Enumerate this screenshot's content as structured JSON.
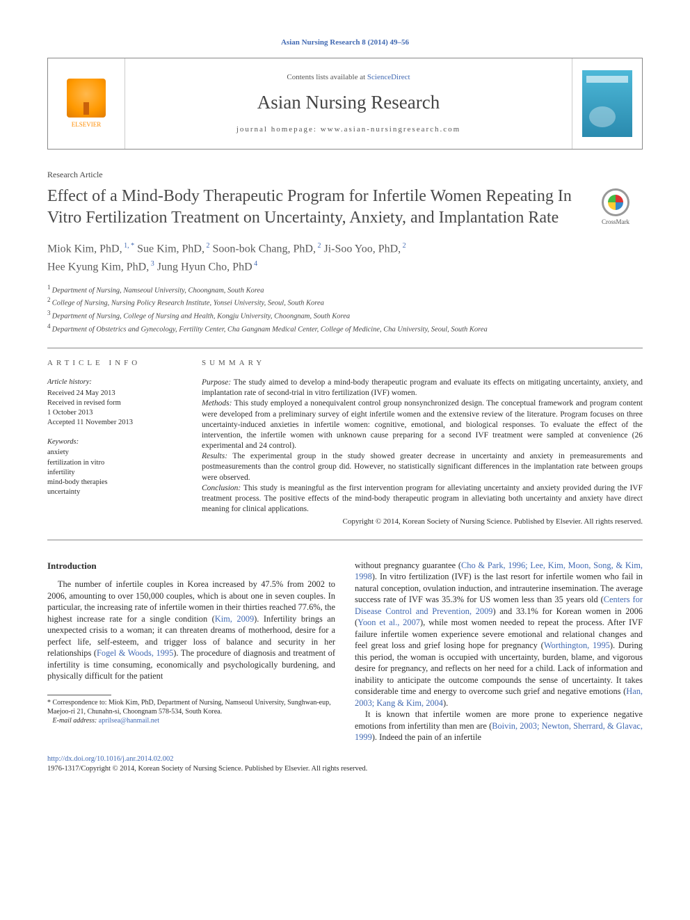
{
  "citation_line": "Asian Nursing Research 8 (2014) 49–56",
  "masthead": {
    "publisher": "ELSEVIER",
    "contents_line_pre": "Contents lists available at ",
    "contents_link": "ScienceDirect",
    "journal_name": "Asian Nursing Research",
    "homepage_label": "journal homepage: www.asian-nursingresearch.com"
  },
  "article_type": "Research Article",
  "title": "Effect of a Mind-Body Therapeutic Program for Infertile Women Repeating In Vitro Fertilization Treatment on Uncertainty, Anxiety, and Implantation Rate",
  "crossmark_label": "CrossMark",
  "authors_html_parts": [
    {
      "name": "Miok Kim, PhD,",
      "sup": "1,",
      "ast": "*"
    },
    {
      "name": " Sue Kim, PhD,",
      "sup": "2"
    },
    {
      "name": " Soon-bok Chang, PhD,",
      "sup": "2"
    },
    {
      "name": " Ji-Soo Yoo, PhD,",
      "sup": "2"
    },
    {
      "name": " Hee Kyung Kim, PhD,",
      "sup": "3"
    },
    {
      "name": " Jung Hyun Cho, PhD",
      "sup": "4"
    }
  ],
  "affiliations": [
    {
      "n": "1",
      "text": "Department of Nursing, Namseoul University, Choongnam, South Korea"
    },
    {
      "n": "2",
      "text": "College of Nursing, Nursing Policy Research Institute, Yonsei University, Seoul, South Korea"
    },
    {
      "n": "3",
      "text": "Department of Nursing, College of Nursing and Health, Kongju University, Choongnam, South Korea"
    },
    {
      "n": "4",
      "text": "Department of Obstetrics and Gynecology, Fertility Center, Cha Gangnam Medical Center, College of Medicine, Cha University, Seoul, South Korea"
    }
  ],
  "info": {
    "heading": "article info",
    "history_label": "Article history:",
    "history": [
      "Received 24 May 2013",
      "Received in revised form",
      "1 October 2013",
      "Accepted 11 November 2013"
    ],
    "keywords_label": "Keywords:",
    "keywords": [
      "anxiety",
      "fertilization in vitro",
      "infertility",
      "mind-body therapies",
      "uncertainty"
    ]
  },
  "summary": {
    "heading": "summary",
    "purpose_label": "Purpose:",
    "purpose": "The study aimed to develop a mind-body therapeutic program and evaluate its effects on mitigating uncertainty, anxiety, and implantation rate of second-trial in vitro fertilization (IVF) women.",
    "methods_label": "Methods:",
    "methods": "This study employed a nonequivalent control group nonsynchronized design. The conceptual framework and program content were developed from a preliminary survey of eight infertile women and the extensive review of the literature. Program focuses on three uncertainty-induced anxieties in infertile women: cognitive, emotional, and biological responses. To evaluate the effect of the intervention, the infertile women with unknown cause preparing for a second IVF treatment were sampled at convenience (26 experimental and 24 control).",
    "results_label": "Results:",
    "results": "The experimental group in the study showed greater decrease in uncertainty and anxiety in premeasurements and postmeasurements than the control group did. However, no statistically significant differences in the implantation rate between groups were observed.",
    "conclusion_label": "Conclusion:",
    "conclusion": "This study is meaningful as the first intervention program for alleviating uncertainty and anxiety provided during the IVF treatment process. The positive effects of the mind-body therapeutic program in alleviating both uncertainty and anxiety have direct meaning for clinical applications.",
    "copyright": "Copyright © 2014, Korean Society of Nursing Science. Published by Elsevier. All rights reserved."
  },
  "intro": {
    "heading": "Introduction",
    "col1_p1_a": "The number of infertile couples in Korea increased by 47.5% from 2002 to 2006, amounting to over 150,000 couples, which is about one in seven couples. In particular, the increasing rate of infertile women in their thirties reached 77.6%, the highest increase rate for a single condition (",
    "col1_cite1": "Kim, 2009",
    "col1_p1_b": "). Infertility brings an unexpected crisis to a woman; it can threaten dreams of motherhood, desire for a perfect life, self-esteem, and trigger loss of balance and security in her relationships (",
    "col1_cite2": "Fogel & Woods, 1995",
    "col1_p1_c": "). The procedure of diagnosis and treatment of infertility is time consuming, economically and psychologically burdening, and physically difficult for the patient",
    "col2_p1_a": "without pregnancy guarantee (",
    "col2_cite1": "Cho & Park, 1996; Lee, Kim, Moon, Song, & Kim, 1998",
    "col2_p1_b": "). In vitro fertilization (IVF) is the last resort for infertile women who fail in natural conception, ovulation induction, and intrauterine insemination. The average success rate of IVF was 35.3% for US women less than 35 years old (",
    "col2_cite2": "Centers for Disease Control and Prevention, 2009",
    "col2_p1_c": ") and 33.1% for Korean women in 2006 (",
    "col2_cite3": "Yoon et al., 2007",
    "col2_p1_d": "), while most women needed to repeat the process. After IVF failure infertile women experience severe emotional and relational changes and feel great loss and grief losing hope for pregnancy (",
    "col2_cite4": "Worthington, 1995",
    "col2_p1_e": "). During this period, the woman is occupied with uncertainty, burden, blame, and vigorous desire for pregnancy, and reflects on her need for a child. Lack of information and inability to anticipate the outcome compounds the sense of uncertainty. It takes considerable time and energy to overcome such grief and negative emotions (",
    "col2_cite5": "Han, 2003; Kang & Kim, 2004",
    "col2_p1_f": ").",
    "col2_p2_a": "It is known that infertile women are more prone to experience negative emotions from infertility than men are (",
    "col2_cite6": "Boivin, 2003; Newton, Sherrard, & Glavac, 1999",
    "col2_p2_b": "). Indeed the pain of an infertile"
  },
  "footnote": {
    "corr_label": "* ",
    "corr_text": "Correspondence to: Miok Kim, PhD, Department of Nursing, Namseoul University, Sunghwan-eup, Maejoo-ri 21, Chunahn-si, Choongnam 578-534, South Korea.",
    "email_label": "E-mail address:",
    "email": "aprilsea@hanmail.net"
  },
  "footer": {
    "doi": "http://dx.doi.org/10.1016/j.anr.2014.02.002",
    "issn_line": "1976-1317/Copyright © 2014, Korean Society of Nursing Science. Published by Elsevier. All rights reserved."
  },
  "colors": {
    "link": "#4169b2",
    "text": "#2b2b2b",
    "rule": "#888888"
  }
}
